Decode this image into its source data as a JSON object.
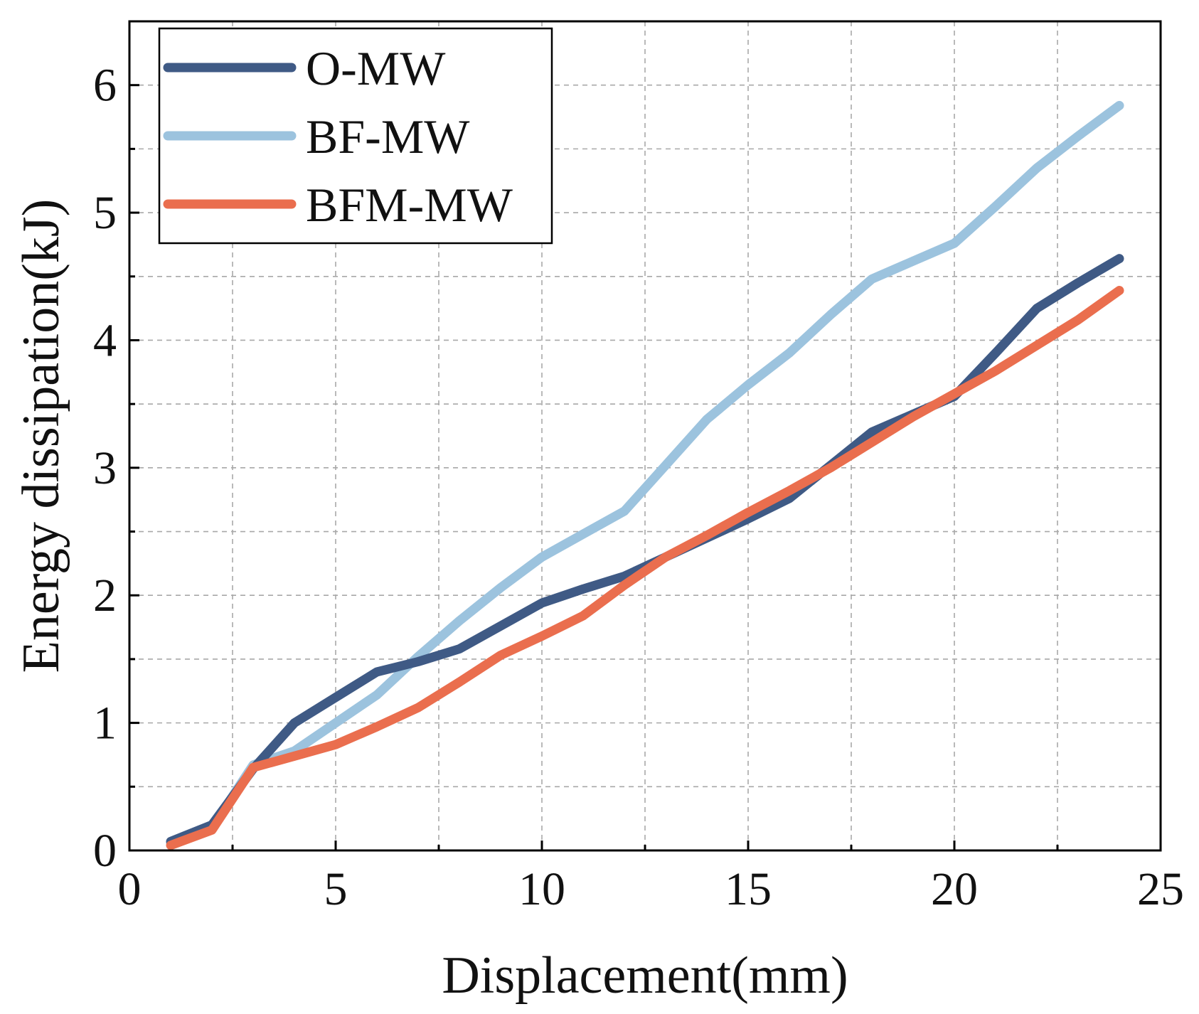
{
  "chart_data": {
    "type": "line",
    "title": "",
    "xlabel": "Displacement(mm)",
    "ylabel": "Energy dissipation(kJ)",
    "xlim": [
      0,
      25
    ],
    "ylim": [
      0,
      6.5
    ],
    "xticks": [
      0,
      5,
      10,
      15,
      20,
      25
    ],
    "yticks": [
      0,
      1,
      2,
      3,
      4,
      5,
      6
    ],
    "xtick_labels": [
      "0",
      "5",
      "10",
      "15",
      "20",
      "25"
    ],
    "ytick_labels": [
      "0",
      "1",
      "2",
      "3",
      "4",
      "5",
      "6"
    ],
    "grid": true,
    "legend_position": "top-left",
    "series": [
      {
        "name": "O-MW",
        "color": "#3f5a85",
        "x": [
          1,
          2,
          3,
          4,
          5,
          6,
          7,
          8,
          9,
          10,
          11,
          12,
          13,
          14,
          15,
          16,
          17,
          18,
          19,
          20,
          21,
          22,
          23,
          24
        ],
        "y": [
          0.07,
          0.2,
          0.64,
          1.0,
          1.2,
          1.4,
          1.48,
          1.58,
          1.76,
          1.94,
          2.05,
          2.15,
          2.3,
          2.45,
          2.6,
          2.76,
          3.02,
          3.28,
          3.42,
          3.56,
          3.9,
          4.25,
          4.45,
          4.64
        ]
      },
      {
        "name": "BF-MW",
        "color": "#9cc3de",
        "x": [
          1,
          2,
          3,
          4,
          5,
          6,
          7,
          8,
          9,
          10,
          11,
          12,
          13,
          14,
          15,
          16,
          17,
          18,
          19,
          20,
          21,
          22,
          23,
          24
        ],
        "y": [
          0.06,
          0.18,
          0.67,
          0.78,
          1.0,
          1.22,
          1.52,
          1.8,
          2.06,
          2.3,
          2.48,
          2.66,
          3.02,
          3.38,
          3.65,
          3.9,
          4.2,
          4.48,
          4.62,
          4.76,
          5.05,
          5.35,
          5.6,
          5.84
        ]
      },
      {
        "name": "BFM-MW",
        "color": "#ea6e4e",
        "x": [
          1,
          2,
          3,
          4,
          5,
          6,
          7,
          8,
          9,
          10,
          11,
          12,
          13,
          14,
          15,
          16,
          17,
          18,
          19,
          20,
          21,
          22,
          23,
          24
        ],
        "y": [
          0.04,
          0.16,
          0.65,
          0.74,
          0.83,
          0.97,
          1.12,
          1.32,
          1.53,
          1.68,
          1.84,
          2.08,
          2.3,
          2.47,
          2.65,
          2.82,
          3.0,
          3.2,
          3.4,
          3.58,
          3.76,
          3.96,
          4.16,
          4.39
        ]
      }
    ]
  }
}
